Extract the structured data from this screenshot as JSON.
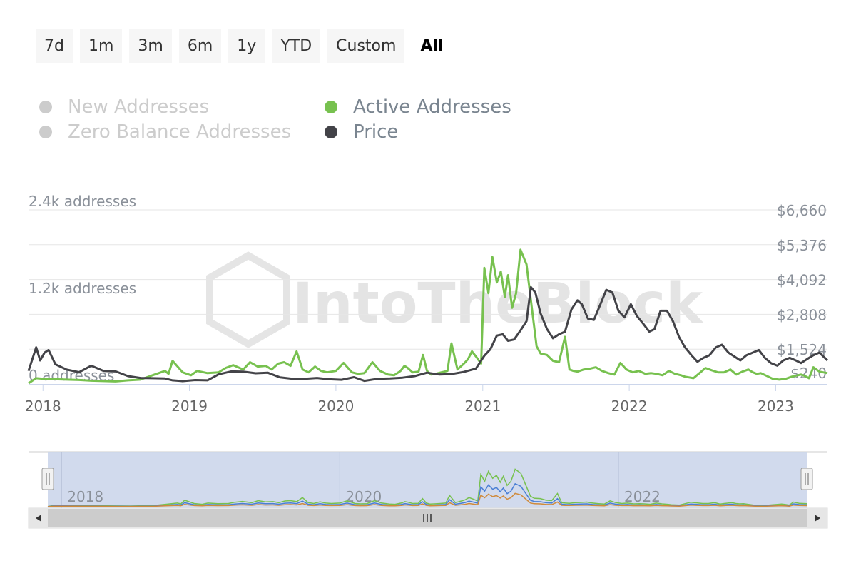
{
  "range_buttons": [
    {
      "label": "7d",
      "active": false
    },
    {
      "label": "1m",
      "active": false
    },
    {
      "label": "3m",
      "active": false
    },
    {
      "label": "6m",
      "active": false
    },
    {
      "label": "1y",
      "active": false
    },
    {
      "label": "YTD",
      "active": false
    },
    {
      "label": "Custom",
      "active": false
    },
    {
      "label": "All",
      "active": true
    }
  ],
  "legend": [
    {
      "label": "New Addresses",
      "color": "#cccccc",
      "visible": false
    },
    {
      "label": "Zero Balance Addresses",
      "color": "#cccccc",
      "visible": false
    },
    {
      "label": "Active Addresses",
      "color": "#77c14f",
      "visible": true
    },
    {
      "label": "Price",
      "color": "#434348",
      "visible": true
    }
  ],
  "watermark": "IntoTheBlock",
  "colors": {
    "active": "#77c14f",
    "price": "#434348",
    "new": "#4a7fd4",
    "zero": "#d08a3a",
    "navigator_fill": "#ccd6eb",
    "axis": "#ccd6eb"
  },
  "chart_data": {
    "type": "line",
    "title": "",
    "x_axis": {
      "labels": [
        "2018",
        "2019",
        "2020",
        "2021",
        "2022",
        "2023"
      ],
      "range": [
        "2017-11-26",
        "2023-05-10"
      ]
    },
    "y_axis_left": {
      "ticks": [
        "0 addresses",
        "1.2k addresses",
        "2.4k addresses"
      ],
      "range": [
        0,
        2400
      ],
      "unit": "addresses"
    },
    "y_axis_right": {
      "ticks": [
        "$240",
        "$1,524",
        "$2,808",
        "$4,092",
        "$5,376",
        "$6,660"
      ],
      "range": [
        0,
        6660
      ],
      "unit": "USD"
    },
    "grid": true,
    "series": [
      {
        "name": "Active Addresses",
        "axis": "left",
        "x": [
          "2017-11-26",
          "2017-12-15",
          "2018-01-05",
          "2018-02-01",
          "2018-03-01",
          "2018-04-01",
          "2018-05-01",
          "2018-06-01",
          "2018-07-01",
          "2018-08-01",
          "2018-09-01",
          "2018-10-01",
          "2018-11-01",
          "2018-11-10",
          "2018-11-20",
          "2018-12-15",
          "2019-01-05",
          "2019-01-20",
          "2019-02-15",
          "2019-03-15",
          "2019-04-01",
          "2019-04-20",
          "2019-05-15",
          "2019-06-01",
          "2019-06-20",
          "2019-07-10",
          "2019-07-25",
          "2019-08-10",
          "2019-08-25",
          "2019-09-10",
          "2019-09-25",
          "2019-10-10",
          "2019-10-25",
          "2019-11-10",
          "2019-11-25",
          "2019-12-10",
          "2020-01-01",
          "2020-01-20",
          "2020-02-10",
          "2020-02-25",
          "2020-03-12",
          "2020-04-01",
          "2020-04-20",
          "2020-05-10",
          "2020-05-25",
          "2020-06-10",
          "2020-06-20",
          "2020-06-28",
          "2020-07-10",
          "2020-07-25",
          "2020-08-05",
          "2020-08-15",
          "2020-08-25",
          "2020-09-05",
          "2020-09-20",
          "2020-10-05",
          "2020-10-15",
          "2020-10-30",
          "2020-11-15",
          "2020-11-25",
          "2020-12-05",
          "2020-12-15",
          "2020-12-28",
          "2021-01-05",
          "2021-01-15",
          "2021-01-25",
          "2021-02-05",
          "2021-02-15",
          "2021-02-25",
          "2021-03-05",
          "2021-03-15",
          "2021-03-25",
          "2021-04-05",
          "2021-04-20",
          "2021-05-01",
          "2021-05-15",
          "2021-05-25",
          "2021-06-10",
          "2021-06-25",
          "2021-07-10",
          "2021-07-25",
          "2021-08-05",
          "2021-08-15",
          "2021-08-25",
          "2021-09-10",
          "2021-09-25",
          "2021-10-10",
          "2021-10-25",
          "2021-11-10",
          "2021-11-25",
          "2021-12-10",
          "2021-12-25",
          "2022-01-10",
          "2022-01-25",
          "2022-02-10",
          "2022-02-25",
          "2022-03-10",
          "2022-03-25",
          "2022-04-10",
          "2022-04-25",
          "2022-05-10",
          "2022-05-20",
          "2022-06-10",
          "2022-06-25",
          "2022-07-10",
          "2022-07-25",
          "2022-08-10",
          "2022-08-25",
          "2022-09-10",
          "2022-09-25",
          "2022-10-10",
          "2022-10-25",
          "2022-11-05",
          "2022-11-15",
          "2022-11-25",
          "2022-12-10",
          "2022-12-25",
          "2023-01-10",
          "2023-01-25",
          "2023-02-10",
          "2023-02-25",
          "2023-03-05",
          "2023-03-15",
          "2023-03-25",
          "2023-04-05",
          "2023-04-20",
          "2023-05-10"
        ],
        "values": [
          10,
          80,
          70,
          65,
          60,
          55,
          45,
          40,
          35,
          50,
          60,
          120,
          180,
          140,
          320,
          160,
          120,
          180,
          150,
          160,
          220,
          260,
          200,
          300,
          240,
          250,
          200,
          280,
          300,
          250,
          450,
          200,
          160,
          240,
          180,
          160,
          180,
          290,
          160,
          140,
          150,
          300,
          180,
          130,
          120,
          180,
          250,
          220,
          160,
          170,
          400,
          180,
          130,
          140,
          160,
          180,
          560,
          200,
          280,
          340,
          450,
          380,
          280,
          1600,
          1250,
          1750,
          1400,
          1550,
          1200,
          1500,
          1050,
          1250,
          1850,
          1650,
          1150,
          520,
          420,
          400,
          320,
          300,
          650,
          200,
          180,
          170,
          200,
          210,
          230,
          180,
          150,
          130,
          290,
          200,
          160,
          180,
          140,
          150,
          140,
          120,
          180,
          140,
          120,
          100,
          80,
          150,
          220,
          190,
          160,
          160,
          200,
          130,
          170,
          200,
          160,
          140,
          150,
          110,
          70,
          60,
          70,
          100,
          120,
          130,
          110,
          80,
          230,
          170,
          150
        ]
      },
      {
        "name": "Price",
        "axis": "right",
        "x": [
          "2017-11-26",
          "2017-12-15",
          "2017-12-25",
          "2018-01-05",
          "2018-01-15",
          "2018-02-01",
          "2018-03-01",
          "2018-04-01",
          "2018-05-01",
          "2018-06-01",
          "2018-07-01",
          "2018-08-01",
          "2018-09-01",
          "2018-10-01",
          "2018-11-01",
          "2018-11-20",
          "2018-12-15",
          "2019-01-15",
          "2019-02-15",
          "2019-03-15",
          "2019-04-15",
          "2019-05-15",
          "2019-06-15",
          "2019-07-15",
          "2019-08-15",
          "2019-09-15",
          "2019-10-15",
          "2019-11-15",
          "2019-12-15",
          "2020-01-15",
          "2020-02-15",
          "2020-03-12",
          "2020-04-15",
          "2020-05-15",
          "2020-06-15",
          "2020-07-15",
          "2020-08-15",
          "2020-09-15",
          "2020-10-15",
          "2020-11-15",
          "2020-12-15",
          "2021-01-05",
          "2021-01-20",
          "2021-02-05",
          "2021-02-20",
          "2021-03-05",
          "2021-03-20",
          "2021-04-05",
          "2021-04-20",
          "2021-05-01",
          "2021-05-12",
          "2021-05-25",
          "2021-06-10",
          "2021-06-25",
          "2021-07-10",
          "2021-07-25",
          "2021-08-10",
          "2021-08-25",
          "2021-09-05",
          "2021-09-20",
          "2021-10-05",
          "2021-10-20",
          "2021-11-05",
          "2021-11-20",
          "2021-12-05",
          "2021-12-20",
          "2022-01-05",
          "2022-01-20",
          "2022-02-05",
          "2022-02-20",
          "2022-03-05",
          "2022-03-20",
          "2022-04-05",
          "2022-04-20",
          "2022-05-05",
          "2022-05-20",
          "2022-06-05",
          "2022-06-20",
          "2022-07-05",
          "2022-07-20",
          "2022-08-05",
          "2022-08-20",
          "2022-09-05",
          "2022-09-20",
          "2022-10-05",
          "2022-10-20",
          "2022-11-05",
          "2022-11-20",
          "2022-12-05",
          "2022-12-20",
          "2023-01-05",
          "2023-01-20",
          "2023-02-05",
          "2023-02-20",
          "2023-03-05",
          "2023-03-20",
          "2023-04-05",
          "2023-04-20",
          "2023-05-10"
        ],
        "values": [
          500,
          1400,
          900,
          1200,
          1300,
          750,
          550,
          450,
          700,
          500,
          480,
          300,
          230,
          220,
          210,
          140,
          110,
          150,
          140,
          370,
          480,
          470,
          410,
          430,
          250,
          200,
          200,
          230,
          180,
          160,
          260,
          120,
          200,
          210,
          240,
          300,
          430,
          360,
          380,
          460,
          590,
          1080,
          1330,
          1850,
          1900,
          1650,
          1700,
          2050,
          2400,
          3700,
          3500,
          2700,
          2100,
          1750,
          1900,
          2000,
          2850,
          3200,
          3050,
          2500,
          2450,
          3000,
          3600,
          3500,
          2800,
          2550,
          3050,
          2600,
          2300,
          2000,
          2100,
          2800,
          2800,
          2400,
          1800,
          1400,
          1100,
          850,
          1000,
          1100,
          1400,
          1500,
          1200,
          1050,
          900,
          1100,
          1200,
          1300,
          1000,
          800,
          700,
          900,
          1000,
          900,
          800,
          950,
          1100,
          1200,
          900
        ]
      },
      {
        "name": "New Addresses",
        "axis": "left",
        "in_main_plot": false,
        "x": [],
        "values": []
      },
      {
        "name": "Zero Balance Addresses",
        "axis": "left",
        "in_main_plot": false,
        "x": [],
        "values": []
      }
    ],
    "navigator": {
      "x_labels": [
        "2018",
        "2020",
        "2022"
      ],
      "range": [
        "2017-11-26",
        "2023-05-10"
      ]
    }
  }
}
